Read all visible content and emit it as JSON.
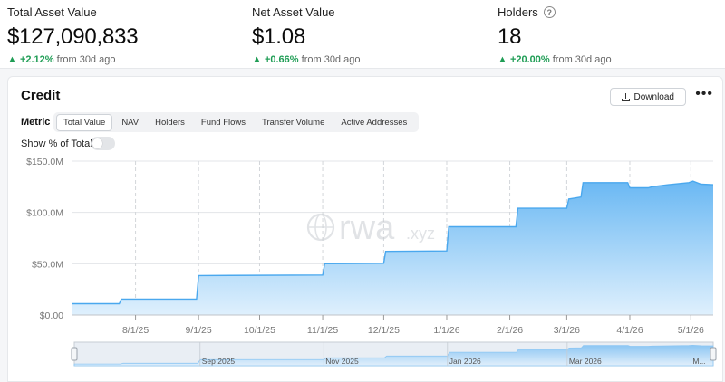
{
  "stats": [
    {
      "label": "Total Asset Value",
      "value": "$127,090,833",
      "change": "+2.12%",
      "period": "from 30d ago"
    },
    {
      "label": "Net Asset Value",
      "value": "$1.08",
      "change": "+0.66%",
      "period": "from 30d ago"
    },
    {
      "label": "Holders",
      "value": "18",
      "change": "+20.00%",
      "period": "from 30d ago",
      "help_icon": "question-circle-icon"
    }
  ],
  "card": {
    "title": "Credit",
    "download_label": "Download",
    "metric_label": "Metric",
    "metric_tabs": [
      "Total Value",
      "NAV",
      "Holders",
      "Fund Flows",
      "Transfer Volume",
      "Active Addresses"
    ],
    "active_tab": "Total Value",
    "show_pct_label": "Show % of Total",
    "show_pct_on": false
  },
  "watermark": {
    "text": "rwa",
    "suffix": ".xyz"
  },
  "colors": {
    "accent": "#4aa8ee",
    "area_fill_top": "#6ab8f3",
    "area_fill_bottom": "#dff0fd",
    "positive": "#1f9d55"
  },
  "chart_data": {
    "type": "area",
    "title": "",
    "xlabel": "",
    "ylabel": "",
    "ylim": [
      0,
      150000000
    ],
    "y_ticks": [
      {
        "value": 0,
        "label": "$0.00"
      },
      {
        "value": 50000000,
        "label": "$50.0M"
      },
      {
        "value": 100000000,
        "label": "$100.0M"
      },
      {
        "value": 150000000,
        "label": "$150.0M"
      }
    ],
    "x_range": [
      "2025-07-01",
      "2026-05-12"
    ],
    "x_ticks": [
      {
        "date": "2025-08-01",
        "label": "8/1/25"
      },
      {
        "date": "2025-09-01",
        "label": "9/1/25"
      },
      {
        "date": "2025-10-01",
        "label": "10/1/25"
      },
      {
        "date": "2025-11-01",
        "label": "11/1/25"
      },
      {
        "date": "2025-12-01",
        "label": "12/1/25"
      },
      {
        "date": "2026-01-01",
        "label": "1/1/26"
      },
      {
        "date": "2026-02-01",
        "label": "2/1/26"
      },
      {
        "date": "2026-03-01",
        "label": "3/1/26"
      },
      {
        "date": "2026-04-01",
        "label": "4/1/26"
      },
      {
        "date": "2026-05-01",
        "label": "5/1/26"
      }
    ],
    "grid": true,
    "series": [
      {
        "points": [
          [
            "2025-07-01",
            11000000
          ],
          [
            "2025-07-24",
            11000000
          ],
          [
            "2025-07-25",
            15500000
          ],
          [
            "2025-08-31",
            15500000
          ],
          [
            "2025-09-01",
            38500000
          ],
          [
            "2025-11-01",
            39000000
          ],
          [
            "2025-11-02",
            50000000
          ],
          [
            "2025-12-01",
            50500000
          ],
          [
            "2025-12-02",
            62000000
          ],
          [
            "2026-01-01",
            62500000
          ],
          [
            "2026-01-02",
            86000000
          ],
          [
            "2026-02-04",
            86000000
          ],
          [
            "2026-02-05",
            104000000
          ],
          [
            "2026-03-01",
            104000000
          ],
          [
            "2026-03-02",
            113000000
          ],
          [
            "2026-03-08",
            115000000
          ],
          [
            "2026-03-09",
            129000000
          ],
          [
            "2026-03-31",
            129000000
          ],
          [
            "2026-04-01",
            124000000
          ],
          [
            "2026-04-10",
            124000000
          ],
          [
            "2026-04-12",
            125000000
          ],
          [
            "2026-04-20",
            127000000
          ],
          [
            "2026-04-30",
            129000000
          ],
          [
            "2026-05-02",
            130500000
          ],
          [
            "2026-05-06",
            127500000
          ],
          [
            "2026-05-12",
            127000000
          ]
        ]
      }
    ],
    "navigator": {
      "labels": [
        {
          "date": "2025-09-01",
          "label": "Sep 2025"
        },
        {
          "date": "2025-11-01",
          "label": "Nov 2025"
        },
        {
          "date": "2026-01-01",
          "label": "Jan 2026"
        },
        {
          "date": "2026-03-01",
          "label": "Mar 2026"
        },
        {
          "date": "2026-05-01",
          "label": "M..."
        }
      ]
    }
  }
}
